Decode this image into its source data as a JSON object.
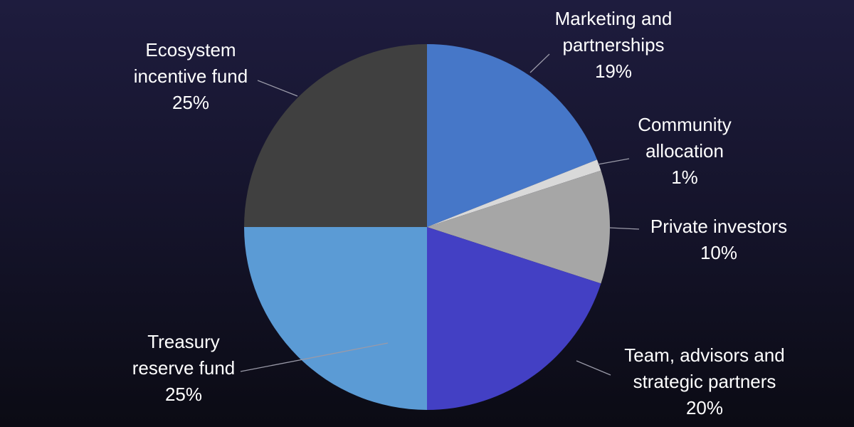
{
  "chart_data": {
    "type": "pie",
    "categories": [
      "Marketing and partnerships",
      "Community allocation",
      "Private investors",
      "Team, advisors and strategic partners",
      "Treasury reserve fund",
      "Ecosystem incentive fund"
    ],
    "values": [
      19,
      1,
      10,
      20,
      25,
      25
    ],
    "value_labels": [
      "19%",
      "1%",
      "10%",
      "20%",
      "25%",
      "25%"
    ],
    "colors": [
      "#4677c8",
      "#d9d9d9",
      "#a6a6a6",
      "#4340c4",
      "#5b9bd5",
      "#404040"
    ]
  }
}
